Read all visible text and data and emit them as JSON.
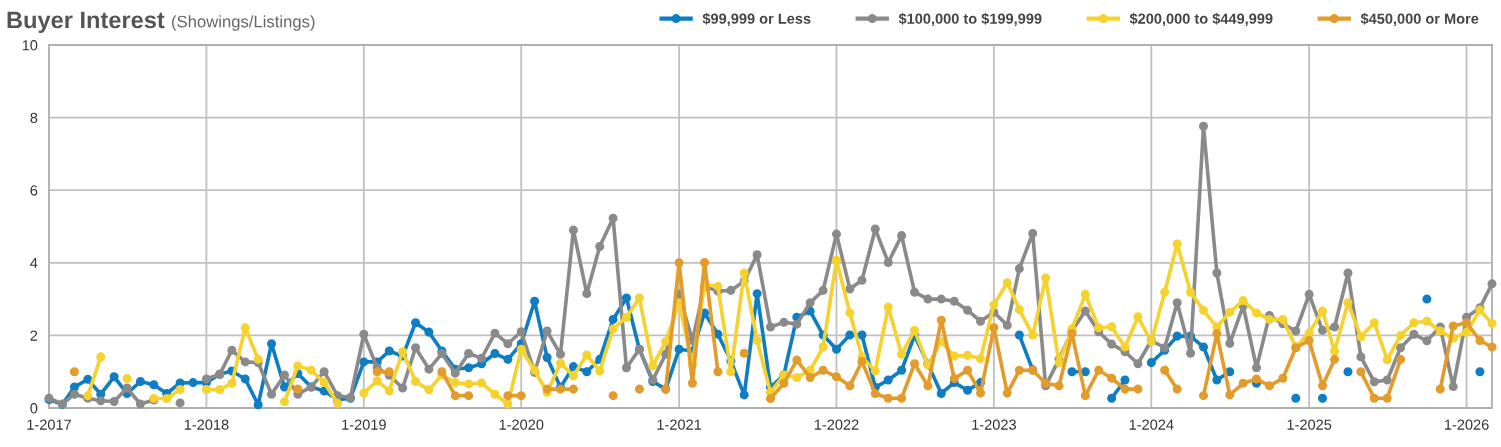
{
  "chart_data": {
    "type": "line",
    "title": "Buyer Interest",
    "subtitle": "(Showings/Listings)",
    "x": [
      "2017-01",
      "2017-02",
      "2017-03",
      "2017-04",
      "2017-05",
      "2017-06",
      "2017-07",
      "2017-08",
      "2017-09",
      "2017-10",
      "2017-11",
      "2017-12",
      "2018-01",
      "2018-02",
      "2018-03",
      "2018-04",
      "2018-05",
      "2018-06",
      "2018-07",
      "2018-08",
      "2018-09",
      "2018-10",
      "2018-11",
      "2018-12",
      "2019-01",
      "2019-02",
      "2019-03",
      "2019-04",
      "2019-05",
      "2019-06",
      "2019-07",
      "2019-08",
      "2019-09",
      "2019-10",
      "2019-11",
      "2019-12",
      "2020-01",
      "2020-02",
      "2020-03",
      "2020-04",
      "2020-05",
      "2020-06",
      "2020-07",
      "2020-08",
      "2020-09",
      "2020-10",
      "2020-11",
      "2020-12",
      "2021-01",
      "2021-02",
      "2021-03",
      "2021-04",
      "2021-05",
      "2021-06",
      "2021-07",
      "2021-08",
      "2021-09",
      "2021-10",
      "2021-11",
      "2021-12",
      "2022-01",
      "2022-02",
      "2022-03",
      "2022-04",
      "2022-05",
      "2022-06",
      "2022-07",
      "2022-08",
      "2022-09",
      "2022-10",
      "2022-11",
      "2022-12",
      "2023-01",
      "2023-02",
      "2023-03",
      "2023-04",
      "2023-05",
      "2023-06",
      "2023-07",
      "2023-08",
      "2023-09",
      "2023-10",
      "2023-11",
      "2023-12",
      "2024-01",
      "2024-02",
      "2024-03",
      "2024-04",
      "2024-05",
      "2024-06",
      "2024-07",
      "2024-08",
      "2024-09",
      "2024-10",
      "2024-11",
      "2024-12",
      "2025-01",
      "2025-02",
      "2025-03",
      "2025-04",
      "2025-05",
      "2025-06",
      "2025-07",
      "2025-08",
      "2025-09",
      "2025-10",
      "2025-11",
      "2025-12",
      "2026-01",
      "2026-02",
      "2026-03"
    ],
    "series": [
      {
        "name": "$99,999 or Less",
        "color": "#0f7dc2",
        "values": [
          0.23,
          0.1,
          0.58,
          0.79,
          0.38,
          0.86,
          0.4,
          0.73,
          0.64,
          0.4,
          0.69,
          0.7,
          0.7,
          0.93,
          1.02,
          0.8,
          0.09,
          1.77,
          0.58,
          0.95,
          0.58,
          0.47,
          0.23,
          0.27,
          1.27,
          1.27,
          1.57,
          1.43,
          2.35,
          2.09,
          1.57,
          1.07,
          1.11,
          1.22,
          1.5,
          1.34,
          1.77,
          2.94,
          1.39,
          0.57,
          1.14,
          1.0,
          1.34,
          2.44,
          3.03,
          1.62,
          0.73,
          0.52,
          1.62,
          1.57,
          2.62,
          2.03,
          1.3,
          0.36,
          3.15,
          0.57,
          0.91,
          2.5,
          2.67,
          2.01,
          1.62,
          2.01,
          2.01,
          0.57,
          0.77,
          1.04,
          2.0,
          1.21,
          0.4,
          0.7,
          0.49,
          0.7,
          null,
          null,
          2.01,
          1.05,
          null,
          null,
          1.0,
          1.0,
          null,
          0.27,
          0.77,
          null,
          1.25,
          1.59,
          1.98,
          1.98,
          1.68,
          0.77,
          1.0,
          null,
          0.68,
          null,
          null,
          0.27,
          null,
          0.27,
          null,
          1.0,
          null,
          null,
          null,
          null,
          null,
          3.0,
          null,
          null,
          null,
          1.0,
          null
        ]
      },
      {
        "name": "$100,000 to $199,999",
        "color": "#8a8a8a",
        "values": [
          0.27,
          0.11,
          0.38,
          0.27,
          0.2,
          0.18,
          0.55,
          0.11,
          0.22,
          null,
          0.14,
          null,
          0.8,
          0.93,
          1.59,
          1.27,
          1.25,
          0.38,
          0.91,
          0.38,
          0.58,
          1.0,
          0.34,
          0.29,
          2.03,
          1.11,
          0.9,
          0.55,
          1.66,
          1.07,
          1.5,
          0.96,
          1.5,
          1.37,
          2.06,
          1.77,
          2.1,
          0.98,
          2.12,
          1.48,
          4.9,
          3.15,
          4.45,
          5.23,
          1.11,
          1.62,
          0.77,
          1.48,
          3.13,
          1.86,
          3.35,
          3.22,
          3.24,
          3.49,
          4.22,
          2.23,
          2.36,
          2.31,
          2.9,
          3.24,
          4.79,
          3.28,
          3.52,
          4.93,
          4.01,
          4.75,
          3.19,
          3.0,
          3.0,
          2.94,
          2.69,
          2.39,
          2.64,
          2.28,
          3.84,
          4.81,
          0.61,
          1.34,
          2.12,
          2.67,
          2.1,
          1.76,
          1.55,
          1.22,
          1.86,
          1.66,
          2.9,
          1.51,
          7.76,
          3.72,
          1.78,
          2.81,
          1.11,
          2.55,
          2.32,
          2.12,
          3.13,
          2.14,
          2.23,
          3.72,
          1.41,
          0.72,
          0.77,
          1.66,
          2.03,
          1.85,
          2.23,
          0.59,
          2.5,
          2.76,
          3.42
        ]
      },
      {
        "name": "$200,000 to $449,999",
        "color": "#f5d22e",
        "values": [
          null,
          null,
          null,
          0.34,
          1.41,
          null,
          0.81,
          null,
          0.26,
          0.26,
          0.51,
          null,
          0.51,
          0.51,
          0.68,
          2.21,
          1.34,
          null,
          0.17,
          1.16,
          1.04,
          0.7,
          0.13,
          null,
          0.41,
          0.75,
          0.47,
          1.55,
          0.73,
          0.5,
          0.91,
          0.7,
          0.66,
          0.69,
          0.38,
          0.11,
          1.62,
          1.04,
          0.43,
          1.23,
          0.89,
          1.46,
          1.02,
          2.18,
          2.5,
          3.03,
          1.16,
          1.83,
          2.9,
          1.2,
          3.4,
          3.35,
          1.0,
          3.72,
          1.86,
          0.43,
          0.91,
          0.84,
          1.04,
          1.68,
          4.07,
          2.62,
          1.41,
          1.02,
          2.78,
          1.48,
          2.14,
          1.18,
          1.83,
          1.43,
          1.45,
          1.36,
          2.84,
          3.45,
          2.71,
          2.01,
          3.58,
          1.25,
          2.18,
          3.13,
          2.21,
          2.24,
          1.68,
          2.51,
          1.83,
          3.19,
          4.52,
          3.19,
          2.69,
          2.23,
          2.64,
          2.96,
          2.62,
          2.44,
          2.44,
          1.68,
          2.07,
          2.67,
          1.57,
          2.9,
          1.96,
          2.35,
          1.33,
          2.0,
          2.35,
          2.39,
          2.12,
          1.92,
          2.09,
          2.7,
          2.33
        ]
      },
      {
        "name": "$450,000 or More",
        "color": "#e39b2b",
        "values": [
          null,
          null,
          1.0,
          null,
          null,
          null,
          null,
          null,
          null,
          null,
          null,
          null,
          null,
          null,
          null,
          null,
          null,
          null,
          null,
          0.52,
          null,
          null,
          null,
          null,
          null,
          1.0,
          1.0,
          null,
          null,
          null,
          1.0,
          0.34,
          0.34,
          null,
          null,
          0.34,
          0.34,
          null,
          0.52,
          0.52,
          0.52,
          null,
          null,
          0.34,
          null,
          0.52,
          null,
          0.52,
          4.0,
          0.68,
          4.01,
          1.0,
          null,
          1.51,
          null,
          0.26,
          0.68,
          1.32,
          0.84,
          1.04,
          0.86,
          0.61,
          1.28,
          0.4,
          0.27,
          0.27,
          1.22,
          0.61,
          2.42,
          0.81,
          1.04,
          0.41,
          2.21,
          0.41,
          1.04,
          1.04,
          0.68,
          0.61,
          2.05,
          0.34,
          1.04,
          0.82,
          0.52,
          0.52,
          null,
          1.04,
          0.52,
          null,
          0.34,
          2.05,
          0.36,
          0.68,
          0.8,
          0.61,
          0.82,
          1.66,
          1.86,
          0.61,
          1.34,
          null,
          1.0,
          0.27,
          0.27,
          1.34,
          null,
          null,
          0.52,
          2.26,
          2.35,
          1.86,
          1.68
        ]
      }
    ],
    "xlim": [
      "2017-01",
      "2026-03"
    ],
    "xticks": [
      {
        "value": "2017-01",
        "label": "1-2017"
      },
      {
        "value": "2018-01",
        "label": "1-2018"
      },
      {
        "value": "2019-01",
        "label": "1-2019"
      },
      {
        "value": "2020-01",
        "label": "1-2020"
      },
      {
        "value": "2021-01",
        "label": "1-2021"
      },
      {
        "value": "2022-01",
        "label": "1-2022"
      },
      {
        "value": "2023-01",
        "label": "1-2023"
      },
      {
        "value": "2024-01",
        "label": "1-2024"
      },
      {
        "value": "2025-01",
        "label": "1-2025"
      },
      {
        "value": "2026-01",
        "label": "1-2026"
      }
    ],
    "ylim": [
      0,
      10
    ],
    "yticks": [
      0,
      2,
      4,
      6,
      8,
      10
    ],
    "grid": true,
    "legend": "top right",
    "marker": "circle",
    "line_style": "solid"
  }
}
